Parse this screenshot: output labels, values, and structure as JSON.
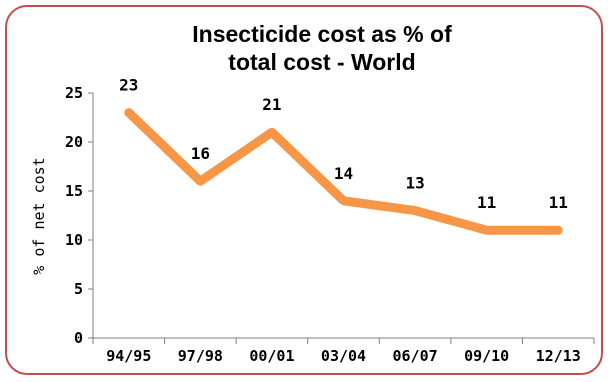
{
  "chart_data": {
    "type": "line",
    "title_lines": [
      "Insecticide cost as % of",
      "total cost - World"
    ],
    "xlabel": "",
    "ylabel": "% of net cost",
    "categories": [
      "94/95",
      "97/98",
      "00/01",
      "03/04",
      "06/07",
      "09/10",
      "12/13"
    ],
    "series": [
      {
        "values": [
          23,
          16,
          21,
          14,
          13,
          11,
          11
        ],
        "data_labels": [
          "23",
          "16",
          "21",
          "14",
          "13",
          "11",
          "11"
        ],
        "color": "#f79646"
      }
    ],
    "yticks": [
      "0",
      "5",
      "10",
      "15",
      "20",
      "25"
    ],
    "ylim": [
      0,
      25
    ],
    "grid": false,
    "legend": "none"
  },
  "colors": {
    "frame_border": "#c0504d",
    "line": "#f79646",
    "axis": "#7f7f7f"
  }
}
